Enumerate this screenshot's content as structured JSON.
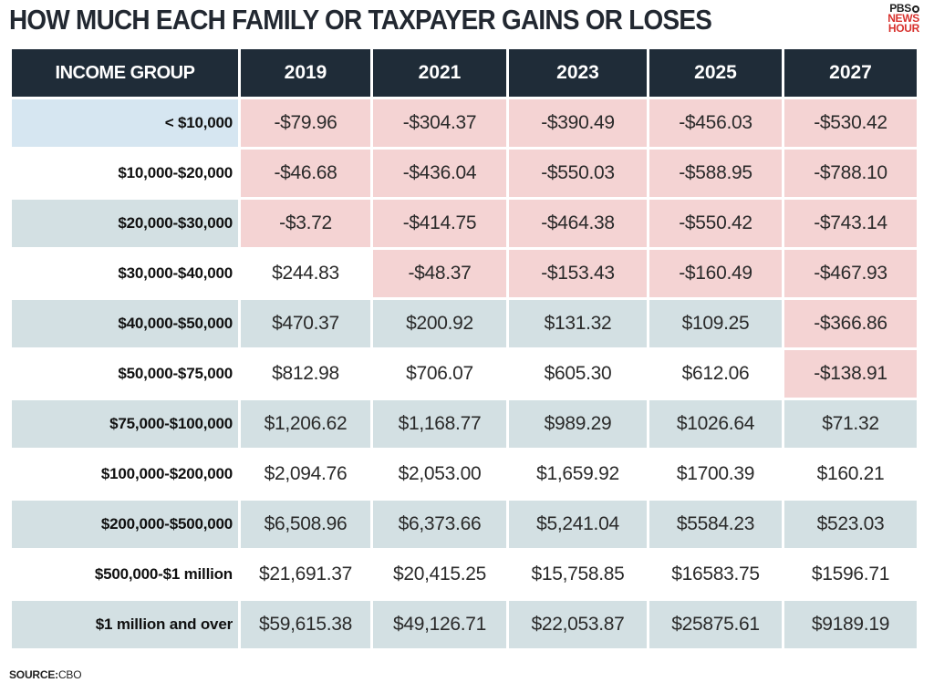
{
  "title": "HOW MUCH EACH FAMILY OR TAXPAYER GAINS OR LOSES",
  "logo": {
    "line1": "PBS",
    "line2": "NEWS",
    "line3": "HOUR"
  },
  "source": {
    "label": "SOURCE:",
    "value": "CBO"
  },
  "colors": {
    "header_bg": "#1f2c38",
    "negative_cell": "#f4d3d3",
    "shaded_row": "#d3e0e3",
    "first_label_cell": "#d6e6f1"
  },
  "chart_data": {
    "type": "table",
    "columns": [
      "INCOME GROUP",
      "2019",
      "2021",
      "2023",
      "2025",
      "2027"
    ],
    "rows": [
      {
        "label": "< $10,000",
        "cells": [
          "-$79.96",
          "-$304.37",
          "-$390.49",
          "-$456.03",
          "-$530.42"
        ],
        "values": [
          -79.96,
          -304.37,
          -390.49,
          -456.03,
          -530.42
        ]
      },
      {
        "label": "$10,000-$20,000",
        "cells": [
          "-$46.68",
          "-$436.04",
          "-$550.03",
          "-$588.95",
          "-$788.10"
        ],
        "values": [
          -46.68,
          -436.04,
          -550.03,
          -588.95,
          -788.1
        ]
      },
      {
        "label": "$20,000-$30,000",
        "cells": [
          "-$3.72",
          "-$414.75",
          "-$464.38",
          "-$550.42",
          "-$743.14"
        ],
        "values": [
          -3.72,
          -414.75,
          -464.38,
          -550.42,
          -743.14
        ]
      },
      {
        "label": "$30,000-$40,000",
        "cells": [
          "$244.83",
          "-$48.37",
          "-$153.43",
          "-$160.49",
          "-$467.93"
        ],
        "values": [
          244.83,
          -48.37,
          -153.43,
          -160.49,
          -467.93
        ]
      },
      {
        "label": "$40,000-$50,000",
        "cells": [
          "$470.37",
          "$200.92",
          "$131.32",
          "$109.25",
          "-$366.86"
        ],
        "values": [
          470.37,
          200.92,
          131.32,
          109.25,
          -366.86
        ]
      },
      {
        "label": "$50,000-$75,000",
        "cells": [
          "$812.98",
          "$706.07",
          "$605.30",
          "$612.06",
          "-$138.91"
        ],
        "values": [
          812.98,
          706.07,
          605.3,
          612.06,
          -138.91
        ]
      },
      {
        "label": "$75,000-$100,000",
        "cells": [
          "$1,206.62",
          "$1,168.77",
          "$989.29",
          "$1026.64",
          "$71.32"
        ],
        "values": [
          1206.62,
          1168.77,
          989.29,
          1026.64,
          71.32
        ]
      },
      {
        "label": "$100,000-$200,000",
        "cells": [
          "$2,094.76",
          "$2,053.00",
          "$1,659.92",
          "$1700.39",
          "$160.21"
        ],
        "values": [
          2094.76,
          2053.0,
          1659.92,
          1700.39,
          160.21
        ]
      },
      {
        "label": "$200,000-$500,000",
        "cells": [
          "$6,508.96",
          "$6,373.66",
          "$5,241.04",
          "$5584.23",
          "$523.03"
        ],
        "values": [
          6508.96,
          6373.66,
          5241.04,
          5584.23,
          523.03
        ]
      },
      {
        "label": "$500,000-$1 million",
        "cells": [
          "$21,691.37",
          "$20,415.25",
          "$15,758.85",
          "$16583.75",
          "$1596.71"
        ],
        "values": [
          21691.37,
          20415.25,
          15758.85,
          16583.75,
          1596.71
        ]
      },
      {
        "label": "$1 million and over",
        "cells": [
          "$59,615.38",
          "$49,126.71",
          "$22,053.87",
          "$25875.61",
          "$9189.19"
        ],
        "values": [
          59615.38,
          49126.71,
          22053.87,
          25875.61,
          9189.19
        ]
      }
    ]
  }
}
